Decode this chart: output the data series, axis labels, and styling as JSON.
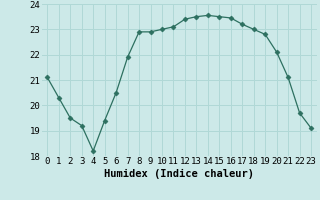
{
  "x": [
    0,
    1,
    2,
    3,
    4,
    5,
    6,
    7,
    8,
    9,
    10,
    11,
    12,
    13,
    14,
    15,
    16,
    17,
    18,
    19,
    20,
    21,
    22,
    23
  ],
  "y": [
    21.1,
    20.3,
    19.5,
    19.2,
    18.2,
    19.4,
    20.5,
    21.9,
    22.9,
    22.9,
    23.0,
    23.1,
    23.4,
    23.5,
    23.55,
    23.5,
    23.45,
    23.2,
    23.0,
    22.8,
    22.1,
    21.1,
    19.7,
    19.1
  ],
  "line_color": "#2d7060",
  "marker": "D",
  "marker_size": 2.5,
  "bg_color": "#cce9e8",
  "grid_color": "#b0d8d6",
  "xlabel": "Humidex (Indice chaleur)",
  "ylim": [
    18,
    24
  ],
  "xlim": [
    -0.5,
    23.5
  ],
  "yticks": [
    18,
    19,
    20,
    21,
    22,
    23,
    24
  ],
  "xticks": [
    0,
    1,
    2,
    3,
    4,
    5,
    6,
    7,
    8,
    9,
    10,
    11,
    12,
    13,
    14,
    15,
    16,
    17,
    18,
    19,
    20,
    21,
    22,
    23
  ],
  "xlabel_fontsize": 7.5,
  "tick_fontsize": 6.5
}
